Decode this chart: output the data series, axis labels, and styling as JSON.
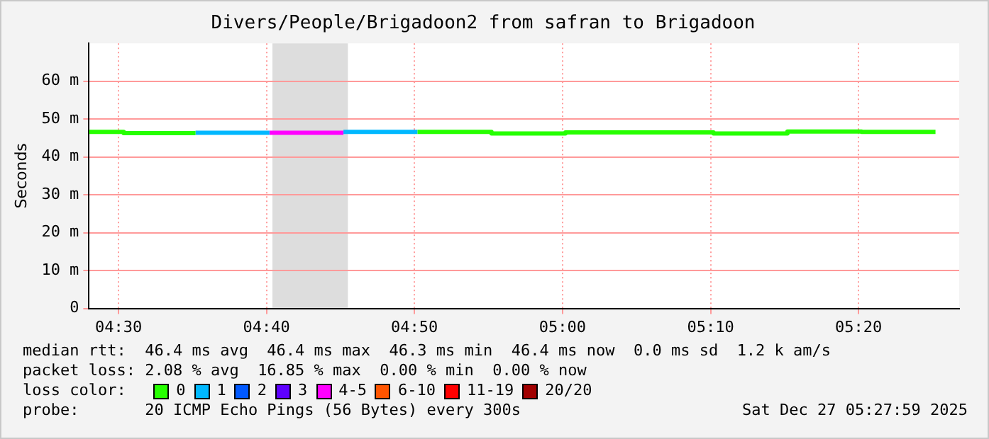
{
  "chart_data": {
    "type": "line",
    "title": "Divers/People/Brigadoon2 from safran to Brigadoon",
    "ylabel": "Seconds",
    "series": [
      {
        "color": "#26ff00",
        "x": [
          4.4667,
          4.5058,
          4.5058,
          4.5867,
          4.7117,
          4.8367,
          4.92,
          4.92,
          5.0033,
          5.0033,
          5.17,
          5.17,
          5.2533,
          5.2533,
          5.3367,
          5.3367,
          5.42
        ],
        "values": [
          46.6,
          46.6,
          46.3,
          46.3,
          null,
          46.6,
          46.6,
          46.2,
          46.2,
          46.5,
          46.5,
          46.2,
          46.2,
          46.7,
          46.7,
          46.6,
          46.6
        ]
      },
      {
        "color": "#00b8ff",
        "x": [
          4.5867,
          4.67,
          4.7117,
          4.7533,
          4.8367
        ],
        "values": [
          46.4,
          46.4,
          null,
          46.6,
          46.6
        ]
      },
      {
        "color": "#ff00ff",
        "x": [
          4.67,
          4.7533
        ],
        "values": [
          46.4,
          46.4
        ]
      }
    ],
    "xlim": [
      4.4667,
      5.4467
    ],
    "xticks": [
      {
        "value": 4.5,
        "label": "04:30"
      },
      {
        "value": 4.6667,
        "label": "04:40"
      },
      {
        "value": 4.8333,
        "label": "04:50"
      },
      {
        "value": 5,
        "label": "05:00"
      },
      {
        "value": 5.1667,
        "label": "05:10"
      },
      {
        "value": 5.3333,
        "label": "05:20"
      }
    ],
    "ylim": [
      0,
      70
    ],
    "yticks": [
      0,
      {
        "value": 10,
        "label": "10 m"
      },
      {
        "value": 20,
        "label": "20 m"
      },
      {
        "value": 30,
        "label": "30 m"
      },
      {
        "value": 40,
        "label": "40 m"
      },
      {
        "value": 50,
        "label": "50 m"
      },
      {
        "value": 60,
        "label": "60 m"
      }
    ],
    "grid": true,
    "legend": false,
    "marker": "none",
    "bands": [
      {
        "axis": "x",
        "from": 4.6733,
        "to": 4.7583,
        "color": "#dddddd"
      }
    ],
    "annotations": [
      "median rtt:  46.4 ms avg  46.4 ms max  46.3 ms min  46.4 ms now  0.0 ms sd  1.2 k am/s",
      "packet loss: 2.08 % avg  16.85 % max  0.00 % min  0.00 % now",
      "loss color:",
      "0",
      "1",
      "2",
      "3",
      "4-5",
      "6-10",
      "11-19",
      "20/20",
      "probe:       20 ICMP Echo Pings (56 Bytes) every 300s",
      "Sat Dec 27 05:27:59 2025"
    ]
  }
}
